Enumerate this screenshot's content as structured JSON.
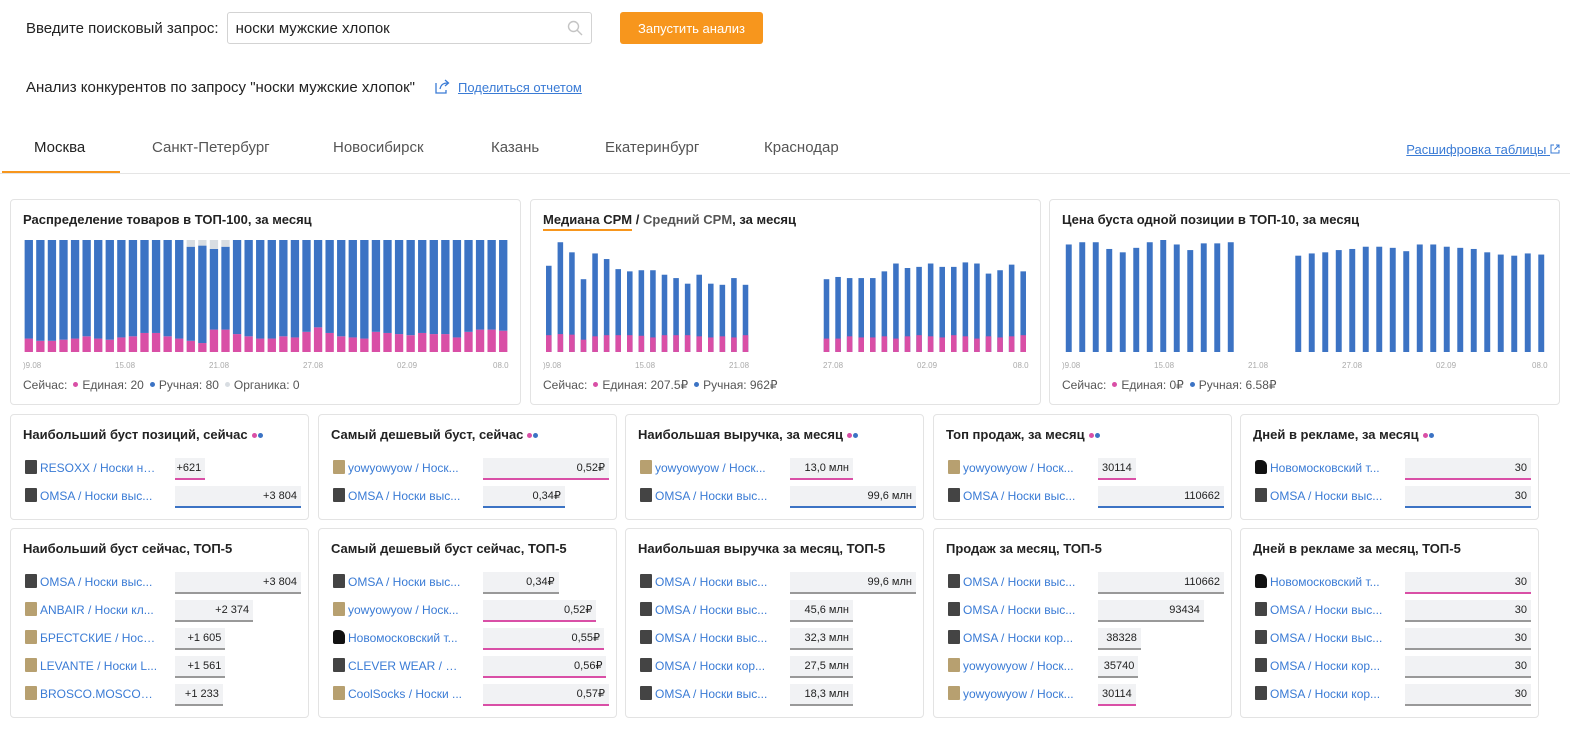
{
  "search": {
    "label": "Введите поисковый запрос:",
    "value": "носки мужские хлопок",
    "button": "Запустить анализ"
  },
  "analysis": {
    "title": "Анализ конкурентов по запросу \"носки мужские хлопок\"",
    "share": "Поделиться отчетом"
  },
  "tabs": [
    "Москва",
    "Санкт-Петербург",
    "Новосибирск",
    "Казань",
    "Екатеринбург",
    "Краснодар"
  ],
  "decode_link": "Расшифровка таблицы",
  "colors": {
    "accent": "#f7961d",
    "pink": "#d94fa6",
    "blue": "#3c73c4",
    "grey": "#d8dde2",
    "link": "#3a7bd5"
  },
  "charts": {
    "dist": {
      "title": "Распределение товаров в ТОП-100, за месяц",
      "legend": {
        "now": "Сейчас:",
        "a": "Единая: 20",
        "b": "Ручная: 80",
        "c": "Органика: 0"
      }
    },
    "cpm": {
      "title_a": "Медиана CPM",
      "sep": "/",
      "title_b": "Средний CPM",
      "title_c": ", за месяц",
      "legend": {
        "now": "Сейчас:",
        "a": "Единая: 207.5₽",
        "b": "Ручная: 962₽"
      }
    },
    "boost": {
      "title": "Цена буста одной позиции в ТОП-10, за месяц",
      "legend": {
        "now": "Сейчас:",
        "a": "Единая: 0₽",
        "b": "Ручная: 6.58₽"
      }
    }
  },
  "chart_data": [
    {
      "type": "bar",
      "title": "Распределение товаров в ТОП-100, за месяц",
      "x_ticks": [
        ")9.08",
        "15.08",
        "21.08",
        "27.08",
        "02.09",
        "08.0("
      ],
      "series": [
        {
          "name": "Единая",
          "values": [
            12,
            10,
            10,
            11,
            12,
            14,
            12,
            11,
            13,
            14,
            17,
            17,
            14,
            12,
            10,
            8,
            20,
            20,
            16,
            14,
            12,
            12,
            14,
            13,
            18,
            22,
            17,
            14,
            13,
            12,
            18,
            17,
            16,
            15,
            17,
            16,
            16,
            13,
            18,
            20,
            20,
            19
          ]
        },
        {
          "name": "Ручная",
          "values": [
            88,
            90,
            90,
            89,
            88,
            86,
            88,
            89,
            87,
            86,
            83,
            83,
            86,
            88,
            84,
            87,
            72,
            74,
            84,
            86,
            88,
            88,
            86,
            87,
            82,
            78,
            83,
            86,
            87,
            88,
            82,
            83,
            84,
            85,
            83,
            84,
            84,
            87,
            82,
            80,
            80,
            81
          ]
        },
        {
          "name": "Органика",
          "values": [
            0,
            0,
            0,
            0,
            0,
            0,
            0,
            0,
            0,
            0,
            0,
            0,
            0,
            0,
            6,
            5,
            8,
            6,
            0,
            0,
            0,
            0,
            0,
            0,
            0,
            0,
            0,
            0,
            0,
            0,
            0,
            0,
            0,
            0,
            0,
            0,
            0,
            0,
            0,
            0,
            0,
            0
          ]
        }
      ],
      "ylim": [
        0,
        100
      ]
    },
    {
      "type": "bar",
      "title": "Медиана CPM / Средний CPM, за месяц",
      "x_ticks": [
        ")9.08",
        "15.08",
        "21.08",
        "27.08",
        "02.09",
        "08.0("
      ],
      "series": [
        {
          "name": "Единая",
          "values": [
            150,
            160,
            155,
            110,
            140,
            150,
            150,
            150,
            145,
            130,
            150,
            150,
            150,
            140,
            130,
            140,
            130,
            150,
            null,
            null,
            null,
            null,
            null,
            null,
            120,
            120,
            140,
            130,
            130,
            140,
            120,
            140,
            150,
            140,
            130,
            150,
            140,
            120,
            140,
            130,
            140,
            150
          ]
        },
        {
          "name": "Ручная",
          "values": [
            770,
            980,
            890,
            650,
            880,
            830,
            740,
            720,
            730,
            730,
            690,
            660,
            610,
            690,
            610,
            600,
            660,
            600,
            null,
            null,
            null,
            null,
            null,
            null,
            650,
            670,
            660,
            660,
            660,
            720,
            790,
            750,
            760,
            790,
            760,
            760,
            800,
            790,
            700,
            730,
            780,
            720
          ]
        }
      ],
      "ylim": [
        0,
        1000
      ]
    },
    {
      "type": "bar",
      "title": "Цена буста одной позиции в ТОП-10, за месяц",
      "x_ticks": [
        ")9.08",
        "15.08",
        "21.08",
        "27.08",
        "02.09",
        "08.0("
      ],
      "series": [
        {
          "name": "Ручная",
          "values": [
            9.6,
            9.8,
            9.8,
            9.2,
            8.9,
            9.3,
            9.8,
            10.0,
            9.6,
            9.1,
            9.7,
            9.7,
            9.8,
            null,
            null,
            null,
            null,
            8.6,
            8.8,
            8.9,
            9.1,
            9.2,
            9.4,
            9.4,
            9.3,
            9.0,
            9.6,
            9.6,
            9.4,
            9.3,
            9.2,
            8.9,
            8.7,
            8.6,
            8.8,
            8.7
          ]
        }
      ],
      "ylim": [
        0,
        10
      ]
    }
  ],
  "row1": [
    {
      "title": "Наибольший буст позиций, сейчас",
      "rows": [
        {
          "name": "RESOXX / Носки на...",
          "value": "+621",
          "pct": 24,
          "color": "pink",
          "thumb": "dark"
        },
        {
          "name": "OMSA / Носки выс...",
          "value": "+3 804",
          "pct": 100,
          "color": "blue",
          "thumb": "dark"
        }
      ]
    },
    {
      "title": "Самый дешевый буст, сейчас",
      "rows": [
        {
          "name": "yowyowyow / Носк...",
          "value": "0,52₽",
          "pct": 100,
          "color": "pink",
          "thumb": "light"
        },
        {
          "name": "OMSA / Носки выс...",
          "value": "0,34₽",
          "pct": 65,
          "color": "blue",
          "thumb": "dark"
        }
      ]
    },
    {
      "title": "Наибольшая выручка, за месяц",
      "rows": [
        {
          "name": "yowyowyow / Носк...",
          "value": "13,0 млн",
          "pct": 50,
          "color": "pink",
          "thumb": "light"
        },
        {
          "name": "OMSA / Носки выс...",
          "value": "99,6 млн",
          "pct": 100,
          "color": "blue",
          "thumb": "dark"
        }
      ]
    },
    {
      "title": "Топ продаж, за месяц",
      "rows": [
        {
          "name": "yowyowyow / Носк...",
          "value": "30114",
          "pct": 30,
          "color": "pink",
          "thumb": "light"
        },
        {
          "name": "OMSA / Носки выс...",
          "value": "110662",
          "pct": 100,
          "color": "blue",
          "thumb": "dark"
        }
      ]
    },
    {
      "title": "Дней в рекламе, за месяц",
      "rows": [
        {
          "name": "Новомосковский т...",
          "value": "30",
          "pct": 100,
          "color": "pink",
          "thumb": "shoe"
        },
        {
          "name": "OMSA / Носки выс...",
          "value": "30",
          "pct": 100,
          "color": "blue",
          "thumb": "dark"
        }
      ]
    }
  ],
  "row2": [
    {
      "title": "Наибольший буст сейчас, ТОП-5",
      "rows": [
        {
          "name": "OMSA / Носки выс...",
          "value": "+3 804",
          "pct": 100,
          "color": "grey",
          "thumb": "dark"
        },
        {
          "name": "ANBAIR / Носки кл...",
          "value": "+2 374",
          "pct": 62,
          "color": "grey",
          "thumb": "light"
        },
        {
          "name": "БРЕСТСКИЕ / Носк...",
          "value": "+1 605",
          "pct": 40,
          "color": "grey",
          "thumb": "light"
        },
        {
          "name": "LEVANTE / Носки L...",
          "value": "+1 561",
          "pct": 40,
          "color": "grey",
          "thumb": "light"
        },
        {
          "name": "BROSCO.MOSCOW ...",
          "value": "+1 233",
          "pct": 38,
          "color": "grey",
          "thumb": "light"
        }
      ]
    },
    {
      "title": "Самый дешевый буст сейчас, ТОП-5",
      "rows": [
        {
          "name": "OMSA / Носки выс...",
          "value": "0,34₽",
          "pct": 60,
          "color": "grey",
          "thumb": "dark"
        },
        {
          "name": "yowyowyow / Носк...",
          "value": "0,52₽",
          "pct": 90,
          "color": "pink",
          "thumb": "light"
        },
        {
          "name": "Новомосковский т...",
          "value": "0,55₽",
          "pct": 96,
          "color": "pink",
          "thumb": "shoe"
        },
        {
          "name": "CLEVER WEAR / Но...",
          "value": "0,56₽",
          "pct": 98,
          "color": "pink",
          "thumb": "dark"
        },
        {
          "name": "CoolSocks / Носки ...",
          "value": "0,57₽",
          "pct": 100,
          "color": "pink",
          "thumb": "light"
        }
      ]
    },
    {
      "title": "Наибольшая выручка за месяц, ТОП-5",
      "rows": [
        {
          "name": "OMSA / Носки выс...",
          "value": "99,6 млн",
          "pct": 100,
          "color": "grey",
          "thumb": "dark"
        },
        {
          "name": "OMSA / Носки выс...",
          "value": "45,6 млн",
          "pct": 50,
          "color": "grey",
          "thumb": "dark"
        },
        {
          "name": "OMSA / Носки выс...",
          "value": "32,3 млн",
          "pct": 50,
          "color": "grey",
          "thumb": "dark"
        },
        {
          "name": "OMSA / Носки кор...",
          "value": "27,5 млн",
          "pct": 50,
          "color": "grey",
          "thumb": "dark"
        },
        {
          "name": "OMSA / Носки выс...",
          "value": "18,3 млн",
          "pct": 50,
          "color": "grey",
          "thumb": "dark"
        }
      ]
    },
    {
      "title": "Продаж за месяц, ТОП-5",
      "rows": [
        {
          "name": "OMSA / Носки выс...",
          "value": "110662",
          "pct": 100,
          "color": "grey",
          "thumb": "dark"
        },
        {
          "name": "OMSA / Носки выс...",
          "value": "93434",
          "pct": 84,
          "color": "grey",
          "thumb": "dark"
        },
        {
          "name": "OMSA / Носки кор...",
          "value": "38328",
          "pct": 34,
          "color": "grey",
          "thumb": "dark"
        },
        {
          "name": "yowyowyow / Носк...",
          "value": "35740",
          "pct": 32,
          "color": "grey",
          "thumb": "light"
        },
        {
          "name": "yowyowyow / Носк...",
          "value": "30114",
          "pct": 30,
          "color": "pink",
          "thumb": "light"
        }
      ]
    },
    {
      "title": "Дней в рекламе за месяц, ТОП-5",
      "rows": [
        {
          "name": "Новомосковский т...",
          "value": "30",
          "pct": 100,
          "color": "pink",
          "thumb": "shoe"
        },
        {
          "name": "OMSA / Носки выс...",
          "value": "30",
          "pct": 100,
          "color": "grey",
          "thumb": "dark"
        },
        {
          "name": "OMSA / Носки выс...",
          "value": "30",
          "pct": 100,
          "color": "grey",
          "thumb": "dark"
        },
        {
          "name": "OMSA / Носки кор...",
          "value": "30",
          "pct": 100,
          "color": "grey",
          "thumb": "dark"
        },
        {
          "name": "OMSA / Носки кор...",
          "value": "30",
          "pct": 100,
          "color": "grey",
          "thumb": "dark"
        }
      ]
    }
  ]
}
